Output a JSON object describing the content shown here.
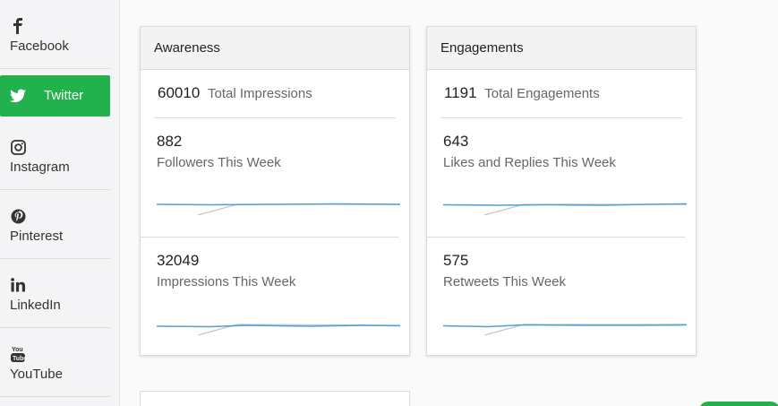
{
  "sidebar": {
    "items": [
      {
        "label": "Facebook",
        "icon": "facebook-icon"
      },
      {
        "label": "Twitter",
        "icon": "twitter-icon",
        "active": true
      },
      {
        "label": "Instagram",
        "icon": "instagram-icon"
      },
      {
        "label": "Pinterest",
        "icon": "pinterest-icon"
      },
      {
        "label": "LinkedIn",
        "icon": "linkedin-icon"
      },
      {
        "label": "YouTube",
        "icon": "youtube-icon"
      }
    ],
    "active_color": "#22b14c"
  },
  "cards": [
    {
      "title": "Awareness",
      "total_value": "60010",
      "total_label": "Total Impressions",
      "metrics": [
        {
          "value": "882",
          "label": "Followers This Week"
        },
        {
          "value": "32049",
          "label": "Impressions This Week"
        }
      ]
    },
    {
      "title": "Engagements",
      "total_value": "1191",
      "total_label": "Total Engagements",
      "metrics": [
        {
          "value": "643",
          "label": "Likes and Replies This Week"
        },
        {
          "value": "575",
          "label": "Retweets This Week"
        }
      ]
    }
  ],
  "colors": {
    "sparkline_current": "#4aa3df",
    "sparkline_previous": "#c8c8c8",
    "accent": "#22b14c"
  }
}
